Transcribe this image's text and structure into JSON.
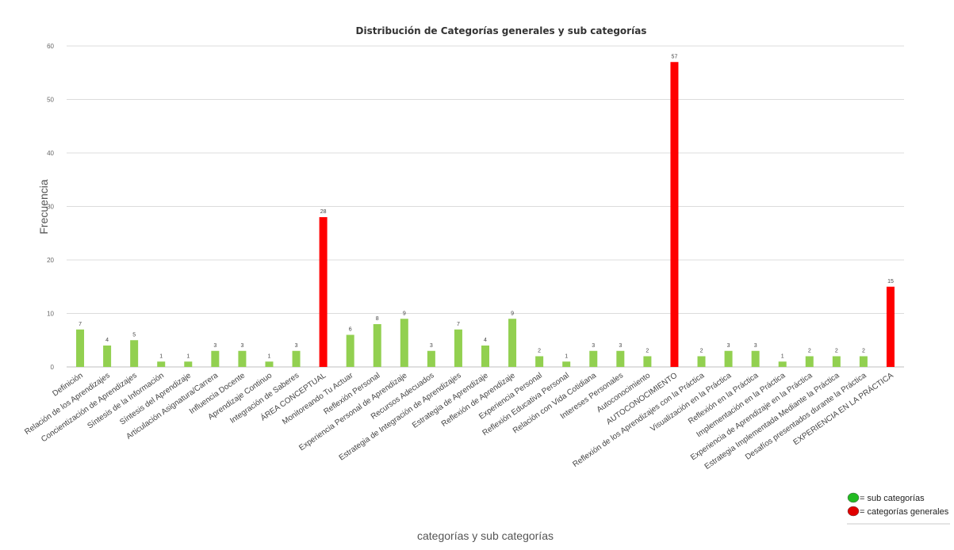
{
  "chart_data": {
    "type": "bar",
    "title": "Distribución de Categorías generales y sub categorías",
    "xlabel": "categorías y sub categorías",
    "ylabel": "Frecuencia",
    "ylim": [
      0,
      60
    ],
    "yticks": [
      0,
      10,
      20,
      30,
      40,
      50,
      60
    ],
    "grid": true,
    "legend_position": "bottom-right",
    "categories": [
      "Definición",
      "Relación de los Aprendizajes",
      "Concientización de Aprendizajes",
      "Síntesis de la Información",
      "Síntesis del Aprendizaje",
      "Articulación Asignatura/Carrera",
      "Influencia Docente",
      "Aprendizaje Continuo",
      "Integración de Saberes",
      "ÁREA CONCEPTUAL",
      "Monitoreando Tu Actuar",
      "Reflexión Personal",
      "Experiencia Personal de Aprendizaje",
      "Recursos Adecuados",
      "Estrategia de Integración de Aprendizajes",
      "Estrategia de Aprendizaje",
      "Reflexión de Aprendizaje",
      "Experiencia Personal",
      "Reflexión Educativa Personal",
      "Relación con Vida Cotidiana",
      "Intereses Personales",
      "Autoconocimiento",
      "AUTOCONOCIMIENTO",
      "Reflexión de los Aprendizajes con la Práctica",
      "Visualización en la Práctica",
      "Reflexión en la Práctica",
      "Implementación en la Práctica",
      "Experiencia de Aprendizaje en la Práctica",
      "Estrategia Implementada Mediante la Práctica",
      "Desafíos presentados durante la Práctica",
      "EXPERIENCIA EN LA PRÁCTICA"
    ],
    "values": [
      7,
      4,
      5,
      1,
      1,
      3,
      3,
      1,
      3,
      28,
      6,
      8,
      9,
      3,
      7,
      4,
      9,
      2,
      1,
      3,
      3,
      2,
      57,
      2,
      3,
      3,
      1,
      2,
      2,
      2,
      15
    ],
    "bar_types": [
      "sub",
      "sub",
      "sub",
      "sub",
      "sub",
      "sub",
      "sub",
      "sub",
      "sub",
      "gen",
      "sub",
      "sub",
      "sub",
      "sub",
      "sub",
      "sub",
      "sub",
      "sub",
      "sub",
      "sub",
      "sub",
      "sub",
      "gen",
      "sub",
      "sub",
      "sub",
      "sub",
      "sub",
      "sub",
      "sub",
      "gen"
    ],
    "colors": {
      "sub": "#92d050",
      "gen": "#ff0000"
    },
    "legend": [
      {
        "key": "sub",
        "label": "= sub categorías",
        "color": "#22bb22"
      },
      {
        "key": "gen",
        "label": "= categorías generales",
        "color": "#e00000"
      }
    ]
  }
}
